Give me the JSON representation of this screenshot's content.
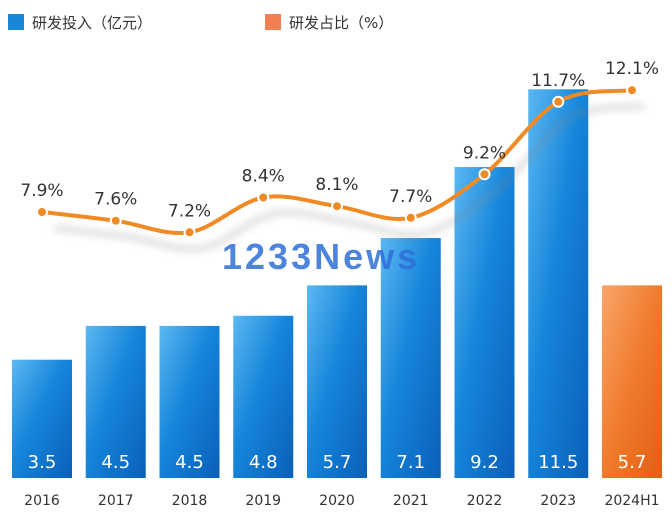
{
  "legend": {
    "bar_label": "研发投入（亿元）",
    "line_label": "研发占比（%）"
  },
  "watermark": "1233News",
  "colors": {
    "bar_blue": "#1a86d8",
    "bar_orange": "#f07b2c",
    "line": "#f08a24"
  },
  "chart_data": {
    "type": "bar",
    "categories": [
      "2016",
      "2017",
      "2018",
      "2019",
      "2020",
      "2021",
      "2022",
      "2023",
      "2024H1"
    ],
    "series": [
      {
        "name": "研发投入（亿元）",
        "type": "bar",
        "values": [
          3.5,
          4.5,
          4.5,
          4.8,
          5.7,
          7.1,
          9.2,
          11.5,
          5.7
        ],
        "labels": [
          "3.5",
          "4.5",
          "4.5",
          "4.8",
          "5.7",
          "7.1",
          "9.2",
          "11.5",
          "5.7"
        ]
      },
      {
        "name": "研发占比（%）",
        "type": "line",
        "values": [
          7.9,
          7.6,
          7.2,
          8.4,
          8.1,
          7.7,
          9.2,
          11.7,
          12.1
        ],
        "labels": [
          "7.9%",
          "7.6%",
          "7.2%",
          "8.4%",
          "8.1%",
          "7.7%",
          "9.2%",
          "11.7%",
          "12.1%"
        ]
      }
    ],
    "highlight_last_bar": true,
    "legend_position": "top-left",
    "grid": false
  }
}
